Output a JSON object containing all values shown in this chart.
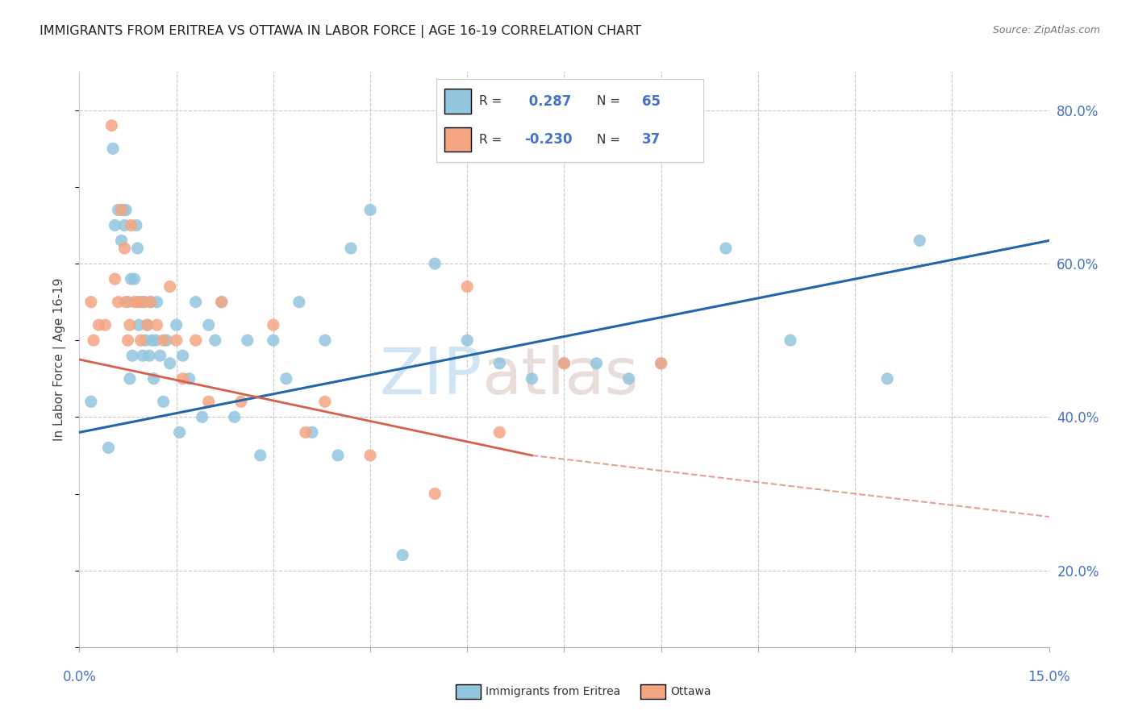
{
  "title": "IMMIGRANTS FROM ERITREA VS OTTAWA IN LABOR FORCE | AGE 16-19 CORRELATION CHART",
  "source": "Source: ZipAtlas.com",
  "ylabel": "In Labor Force | Age 16-19",
  "right_yticks": [
    20.0,
    40.0,
    60.0,
    80.0
  ],
  "xlim": [
    0.0,
    15.0
  ],
  "ylim": [
    10.0,
    85.0
  ],
  "blue_R": 0.287,
  "blue_N": 65,
  "pink_R": -0.23,
  "pink_N": 37,
  "blue_color": "#92c5de",
  "blue_line_color": "#2166ac",
  "pink_color": "#f4a582",
  "pink_line_color": "#d6604d",
  "background_color": "#ffffff",
  "grid_color": "#c8c8c8",
  "title_color": "#222222",
  "right_axis_color": "#4472c4",
  "legend_label_blue": "Immigrants from Eritrea",
  "legend_label_pink": "Ottawa",
  "blue_x": [
    0.18,
    0.45,
    0.52,
    0.55,
    0.6,
    0.65,
    0.68,
    0.7,
    0.72,
    0.75,
    0.78,
    0.8,
    0.82,
    0.85,
    0.88,
    0.9,
    0.92,
    0.95,
    0.98,
    1.0,
    1.02,
    1.05,
    1.08,
    1.1,
    1.12,
    1.15,
    1.18,
    1.2,
    1.25,
    1.3,
    1.35,
    1.4,
    1.5,
    1.55,
    1.6,
    1.7,
    1.8,
    1.9,
    2.0,
    2.1,
    2.2,
    2.4,
    2.6,
    2.8,
    3.0,
    3.2,
    3.4,
    3.6,
    3.8,
    4.0,
    4.2,
    4.5,
    5.0,
    5.5,
    6.0,
    6.5,
    7.0,
    7.5,
    8.0,
    8.5,
    9.0,
    10.0,
    11.0,
    12.5,
    13.0
  ],
  "blue_y": [
    42,
    36,
    75,
    65,
    67,
    63,
    67,
    65,
    67,
    55,
    45,
    58,
    48,
    58,
    65,
    62,
    52,
    55,
    48,
    55,
    50,
    52,
    48,
    55,
    50,
    45,
    50,
    55,
    48,
    42,
    50,
    47,
    52,
    38,
    48,
    45,
    55,
    40,
    52,
    50,
    55,
    40,
    50,
    35,
    50,
    45,
    55,
    38,
    50,
    35,
    62,
    67,
    22,
    60,
    50,
    47,
    45,
    47,
    47,
    45,
    47,
    62,
    50,
    45,
    63
  ],
  "pink_x": [
    0.18,
    0.22,
    0.3,
    0.4,
    0.5,
    0.55,
    0.6,
    0.65,
    0.7,
    0.72,
    0.75,
    0.78,
    0.8,
    0.85,
    0.9,
    0.95,
    1.0,
    1.05,
    1.1,
    1.2,
    1.3,
    1.4,
    1.5,
    1.6,
    1.8,
    2.0,
    2.2,
    2.5,
    3.0,
    3.5,
    3.8,
    4.5,
    5.5,
    6.0,
    6.5,
    7.5,
    9.0
  ],
  "pink_y": [
    55,
    50,
    52,
    52,
    78,
    58,
    55,
    67,
    62,
    55,
    50,
    52,
    65,
    55,
    55,
    50,
    55,
    52,
    55,
    52,
    50,
    57,
    50,
    45,
    50,
    42,
    55,
    42,
    52,
    38,
    42,
    35,
    30,
    57,
    38,
    47,
    47
  ],
  "blue_trend_x0": 0.0,
  "blue_trend_y0": 38.0,
  "blue_trend_x1": 15.0,
  "blue_trend_y1": 63.0,
  "pink_trend_solid_x0": 0.0,
  "pink_trend_solid_y0": 47.5,
  "pink_trend_solid_x1": 7.0,
  "pink_trend_solid_y1": 35.0,
  "pink_trend_dash_x0": 7.0,
  "pink_trend_dash_y0": 35.0,
  "pink_trend_dash_x1": 15.0,
  "pink_trend_dash_y1": 27.0
}
